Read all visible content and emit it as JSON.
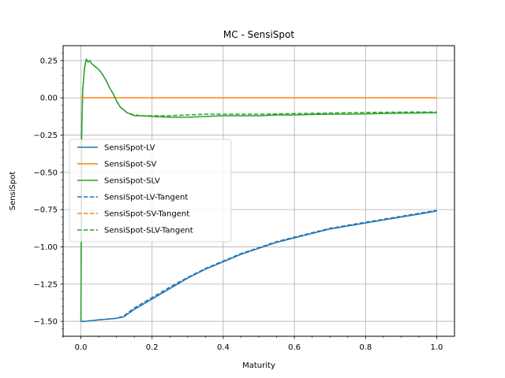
{
  "chart_data": {
    "type": "line",
    "title": "MC - SensiSpot",
    "xlabel": "Maturity",
    "ylabel": "SensiSpot",
    "xlim": [
      -0.05,
      1.05
    ],
    "ylim": [
      -1.6,
      0.35
    ],
    "grid": true,
    "legend_position": "center-left",
    "x_ticks": [
      {
        "value": 0.0,
        "label": "0.0"
      },
      {
        "value": 0.2,
        "label": "0.2"
      },
      {
        "value": 0.4,
        "label": "0.4"
      },
      {
        "value": 0.6,
        "label": "0.6"
      },
      {
        "value": 0.8,
        "label": "0.8"
      },
      {
        "value": 1.0,
        "label": "1.0"
      }
    ],
    "y_ticks": [
      {
        "value": 0.25,
        "label": "0.25"
      },
      {
        "value": 0.0,
        "label": "0.00"
      },
      {
        "value": -0.25,
        "label": "−0.25"
      },
      {
        "value": -0.5,
        "label": "−0.50"
      },
      {
        "value": -0.75,
        "label": "−0.75"
      },
      {
        "value": -1.0,
        "label": "−1.00"
      },
      {
        "value": -1.25,
        "label": "−1.25"
      },
      {
        "value": -1.5,
        "label": "−1.50"
      }
    ],
    "series": [
      {
        "name": "SensiSpot-LV",
        "color": "#1f77b4",
        "dashed": false,
        "x": [
          0.0,
          0.01,
          0.05,
          0.1,
          0.12,
          0.15,
          0.2,
          0.25,
          0.3,
          0.35,
          0.4,
          0.45,
          0.5,
          0.55,
          0.6,
          0.65,
          0.7,
          0.75,
          0.8,
          0.85,
          0.9,
          0.95,
          1.0
        ],
        "y": [
          -1.5,
          -1.5,
          -1.49,
          -1.48,
          -1.47,
          -1.42,
          -1.35,
          -1.28,
          -1.21,
          -1.15,
          -1.1,
          -1.05,
          -1.01,
          -0.97,
          -0.94,
          -0.91,
          -0.88,
          -0.86,
          -0.84,
          -0.82,
          -0.8,
          -0.78,
          -0.76
        ]
      },
      {
        "name": "SensiSpot-SV",
        "color": "#ff7f0e",
        "dashed": false,
        "x": [
          0.0,
          1.0
        ],
        "y": [
          0.0,
          0.0
        ]
      },
      {
        "name": "SensiSpot-SLV",
        "color": "#2ca02c",
        "dashed": false,
        "x": [
          0.0,
          0.002,
          0.005,
          0.01,
          0.015,
          0.02,
          0.025,
          0.03,
          0.04,
          0.05,
          0.06,
          0.07,
          0.08,
          0.09,
          0.1,
          0.11,
          0.12,
          0.13,
          0.15,
          0.17,
          0.2,
          0.25,
          0.3,
          0.35,
          0.4,
          0.45,
          0.5,
          0.55,
          0.6,
          0.65,
          0.7,
          0.75,
          0.8,
          0.85,
          0.9,
          0.95,
          1.0
        ],
        "y": [
          -1.5,
          -0.25,
          0.05,
          0.2,
          0.26,
          0.24,
          0.25,
          0.23,
          0.21,
          0.19,
          0.16,
          0.12,
          0.07,
          0.03,
          -0.02,
          -0.06,
          -0.08,
          -0.1,
          -0.12,
          -0.12,
          -0.125,
          -0.13,
          -0.13,
          -0.125,
          -0.12,
          -0.12,
          -0.12,
          -0.115,
          -0.115,
          -0.112,
          -0.11,
          -0.11,
          -0.108,
          -0.105,
          -0.103,
          -0.102,
          -0.1
        ]
      },
      {
        "name": "SensiSpot-LV-Tangent",
        "color": "#1f77b4",
        "dashed": true,
        "x": [
          0.0,
          0.01,
          0.05,
          0.1,
          0.12,
          0.15,
          0.2,
          0.25,
          0.3,
          0.35,
          0.4,
          0.45,
          0.5,
          0.55,
          0.6,
          0.65,
          0.7,
          0.75,
          0.8,
          0.85,
          0.9,
          0.95,
          1.0
        ],
        "y": [
          -1.5,
          -1.5,
          -1.49,
          -1.48,
          -1.465,
          -1.41,
          -1.34,
          -1.27,
          -1.205,
          -1.145,
          -1.095,
          -1.045,
          -1.005,
          -0.965,
          -0.935,
          -0.905,
          -0.876,
          -0.855,
          -0.835,
          -0.815,
          -0.795,
          -0.775,
          -0.755
        ]
      },
      {
        "name": "SensiSpot-SV-Tangent",
        "color": "#ff7f0e",
        "dashed": true,
        "x": [
          0.0,
          1.0
        ],
        "y": [
          0.0,
          0.0
        ]
      },
      {
        "name": "SensiSpot-SLV-Tangent",
        "color": "#2ca02c",
        "dashed": true,
        "x": [
          0.0,
          0.002,
          0.005,
          0.01,
          0.015,
          0.02,
          0.025,
          0.03,
          0.04,
          0.05,
          0.06,
          0.07,
          0.08,
          0.09,
          0.1,
          0.11,
          0.12,
          0.13,
          0.15,
          0.17,
          0.2,
          0.25,
          0.3,
          0.35,
          0.4,
          0.45,
          0.5,
          0.55,
          0.6,
          0.65,
          0.7,
          0.75,
          0.8,
          0.85,
          0.9,
          0.95,
          1.0
        ],
        "y": [
          -1.5,
          -0.25,
          0.05,
          0.2,
          0.26,
          0.24,
          0.25,
          0.23,
          0.21,
          0.19,
          0.16,
          0.12,
          0.07,
          0.03,
          -0.02,
          -0.06,
          -0.08,
          -0.1,
          -0.115,
          -0.12,
          -0.12,
          -0.12,
          -0.115,
          -0.11,
          -0.11,
          -0.11,
          -0.11,
          -0.108,
          -0.106,
          -0.104,
          -0.102,
          -0.1,
          -0.098,
          -0.097,
          -0.096,
          -0.095,
          -0.095
        ]
      }
    ]
  }
}
